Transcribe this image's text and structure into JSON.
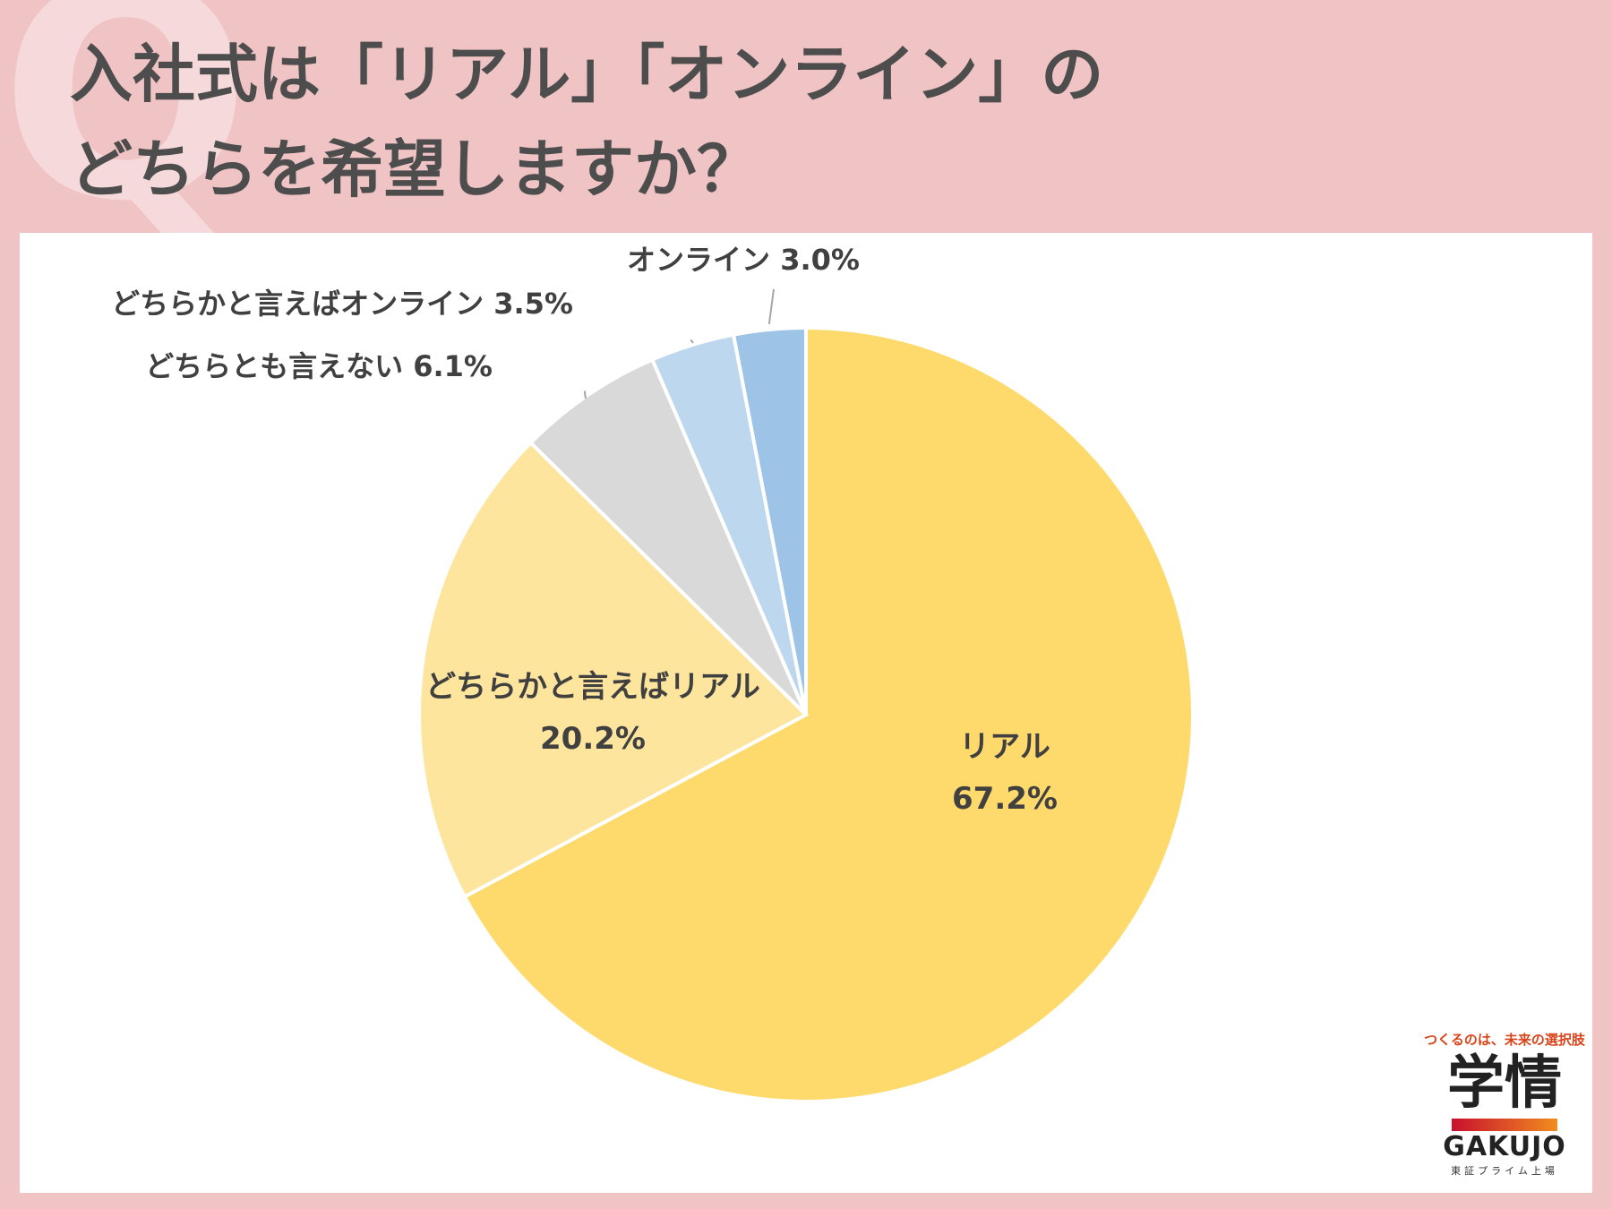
{
  "header": {
    "q_mark": "Q",
    "title_line1": "入社式は「リアル」「オンライン」の",
    "title_line2": "どちらを希望しますか？"
  },
  "chart_data": {
    "type": "pie",
    "title": "入社式は「リアル」「オンライン」のどちらを希望しますか？",
    "slices": [
      {
        "label": "リアル",
        "value": 67.2,
        "display": "67.2%",
        "color": "#fed96b"
      },
      {
        "label": "どちらかと言えばリアル",
        "value": 20.2,
        "display": "20.2%",
        "color": "#fee59d"
      },
      {
        "label": "どちらとも言えない",
        "value": 6.1,
        "display": "6.1%",
        "color": "#d9d9d9"
      },
      {
        "label": "どちらかと言えばオンライン",
        "value": 3.5,
        "display": "3.5%",
        "color": "#bdd7ee"
      },
      {
        "label": "オンライン",
        "value": 3.0,
        "display": "3.0%",
        "color": "#9dc3e6"
      }
    ],
    "start": "12 o'clock",
    "direction": "clockwise",
    "legend": "none (labels on chart)"
  },
  "logo": {
    "tagline": "つくるのは、未来の選択肢",
    "kanji": "学情",
    "english": "GAKUJO",
    "subtext": "東証プライム上場"
  }
}
